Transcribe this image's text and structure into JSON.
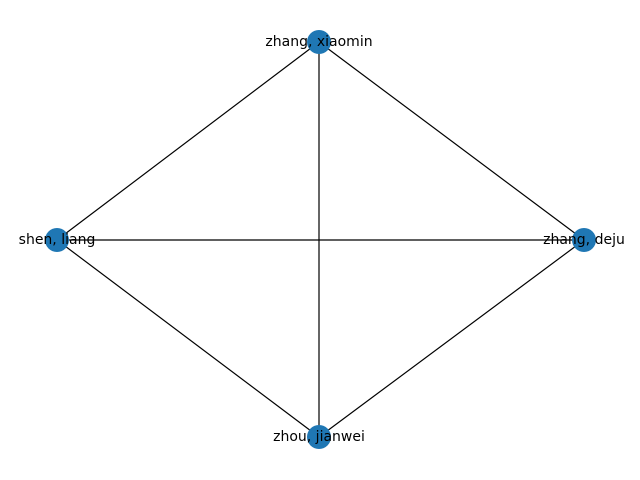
{
  "graph": {
    "type": "network",
    "node_color": "#1f77b4",
    "edge_color": "#000000",
    "nodes": [
      {
        "id": "n1",
        "label": "zhang, xiaomin"
      },
      {
        "id": "n2",
        "label": "shen, liang"
      },
      {
        "id": "n3",
        "label": "zhang, deju"
      },
      {
        "id": "n4",
        "label": "zhou, jianwei"
      }
    ],
    "edges": [
      {
        "source": "n1",
        "target": "n2"
      },
      {
        "source": "n1",
        "target": "n3"
      },
      {
        "source": "n1",
        "target": "n4"
      },
      {
        "source": "n2",
        "target": "n3"
      },
      {
        "source": "n2",
        "target": "n4"
      },
      {
        "source": "n3",
        "target": "n4"
      }
    ]
  }
}
